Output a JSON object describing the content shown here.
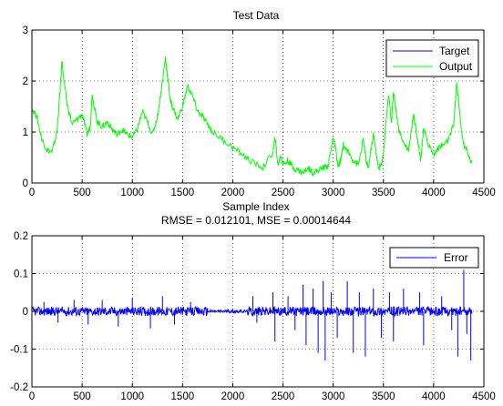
{
  "chart_data": [
    {
      "type": "line",
      "title": "Test Data",
      "xlabel": "Sample Index",
      "ylabel": "",
      "xlim": [
        0,
        4500
      ],
      "ylim": [
        0,
        3
      ],
      "xticks": [
        0,
        500,
        1000,
        1500,
        2000,
        2500,
        3000,
        3500,
        4000,
        4500
      ],
      "yticks": [
        0,
        1,
        2,
        3
      ],
      "grid": true,
      "legend_position": "top-right",
      "series": [
        {
          "name": "Target",
          "color": "#0000ff"
        },
        {
          "name": "Output",
          "color": "#00ff00",
          "x": [
            0,
            50,
            100,
            150,
            200,
            250,
            280,
            300,
            320,
            350,
            400,
            450,
            500,
            550,
            580,
            600,
            620,
            650,
            700,
            750,
            800,
            850,
            900,
            950,
            1000,
            1050,
            1100,
            1150,
            1200,
            1250,
            1300,
            1330,
            1350,
            1380,
            1400,
            1450,
            1500,
            1550,
            1600,
            1650,
            1700,
            1750,
            1800,
            1900,
            2000,
            2100,
            2200,
            2300,
            2400,
            2420,
            2450,
            2480,
            2500,
            2550,
            2600,
            2650,
            2700,
            2750,
            2800,
            2850,
            2900,
            2950,
            3000,
            3020,
            3050,
            3080,
            3100,
            3150,
            3200,
            3250,
            3300,
            3330,
            3350,
            3400,
            3430,
            3450,
            3480,
            3500,
            3550,
            3580,
            3600,
            3620,
            3650,
            3700,
            3750,
            3800,
            3850,
            3870,
            3900,
            3950,
            4000,
            4050,
            4100,
            4150,
            4200,
            4230,
            4250,
            4280,
            4300,
            4350,
            4380
          ],
          "y": [
            1.45,
            1.3,
            0.85,
            0.65,
            0.6,
            1.0,
            1.8,
            2.4,
            2.0,
            1.55,
            1.15,
            1.25,
            1.35,
            0.95,
            1.1,
            1.75,
            1.5,
            1.2,
            1.1,
            1.2,
            1.05,
            0.95,
            1.05,
            0.95,
            0.9,
            1.05,
            1.4,
            1.2,
            0.95,
            1.3,
            2.0,
            2.45,
            2.1,
            1.6,
            1.5,
            1.25,
            1.5,
            1.9,
            1.7,
            1.4,
            1.3,
            1.15,
            1.0,
            0.85,
            0.7,
            0.55,
            0.4,
            0.3,
            0.6,
            0.9,
            0.35,
            0.55,
            0.35,
            0.45,
            0.3,
            0.25,
            0.2,
            0.3,
            0.2,
            0.25,
            0.3,
            0.35,
            0.9,
            0.7,
            0.3,
            0.5,
            0.75,
            0.6,
            0.45,
            0.35,
            0.85,
            0.4,
            0.3,
            0.95,
            0.55,
            0.3,
            0.35,
            0.6,
            1.75,
            1.2,
            1.8,
            1.5,
            1.05,
            0.8,
            0.65,
            1.35,
            0.75,
            0.45,
            1.05,
            0.75,
            0.55,
            0.7,
            0.75,
            0.85,
            1.15,
            1.95,
            1.6,
            0.95,
            0.75,
            0.55,
            0.4
          ]
        }
      ]
    },
    {
      "type": "line",
      "title": "RMSE = 0.012101, MSE = 0.00014644",
      "xlabel": "",
      "ylabel": "",
      "xlim": [
        0,
        4500
      ],
      "ylim": [
        -0.2,
        0.2
      ],
      "xticks": [
        0,
        500,
        1000,
        1500,
        2000,
        2500,
        3000,
        3500,
        4000,
        4500
      ],
      "yticks": [
        -0.2,
        -0.1,
        0,
        0.1,
        0.2
      ],
      "grid": true,
      "legend_position": "top-right",
      "series": [
        {
          "name": "Error",
          "color": "#0000ff",
          "x_range": [
            0,
            4380
          ],
          "baseline": 0,
          "spikes": [
            {
              "x": 120,
              "y": 0.025
            },
            {
              "x": 260,
              "y": -0.03
            },
            {
              "x": 420,
              "y": 0.03
            },
            {
              "x": 560,
              "y": -0.035
            },
            {
              "x": 700,
              "y": 0.03
            },
            {
              "x": 860,
              "y": -0.04
            },
            {
              "x": 1000,
              "y": 0.035
            },
            {
              "x": 1180,
              "y": -0.045
            },
            {
              "x": 1300,
              "y": 0.04
            },
            {
              "x": 1420,
              "y": -0.035
            },
            {
              "x": 1580,
              "y": 0.025
            },
            {
              "x": 2200,
              "y": 0.04
            },
            {
              "x": 2240,
              "y": -0.03
            },
            {
              "x": 2400,
              "y": 0.05
            },
            {
              "x": 2420,
              "y": -0.08
            },
            {
              "x": 2550,
              "y": 0.04
            },
            {
              "x": 2620,
              "y": -0.05
            },
            {
              "x": 2700,
              "y": 0.07
            },
            {
              "x": 2730,
              "y": -0.09
            },
            {
              "x": 2800,
              "y": 0.06
            },
            {
              "x": 2850,
              "y": -0.11
            },
            {
              "x": 2900,
              "y": 0.08
            },
            {
              "x": 2920,
              "y": -0.13
            },
            {
              "x": 2980,
              "y": 0.05
            },
            {
              "x": 3040,
              "y": -0.07
            },
            {
              "x": 3140,
              "y": 0.08
            },
            {
              "x": 3200,
              "y": -0.11
            },
            {
              "x": 3260,
              "y": 0.05
            },
            {
              "x": 3320,
              "y": -0.12
            },
            {
              "x": 3400,
              "y": 0.06
            },
            {
              "x": 3480,
              "y": -0.07
            },
            {
              "x": 3560,
              "y": 0.05
            },
            {
              "x": 3600,
              "y": -0.08
            },
            {
              "x": 3700,
              "y": 0.06
            },
            {
              "x": 3860,
              "y": 0.05
            },
            {
              "x": 3900,
              "y": -0.09
            },
            {
              "x": 4080,
              "y": 0.04
            },
            {
              "x": 4180,
              "y": -0.05
            },
            {
              "x": 4240,
              "y": -0.12
            },
            {
              "x": 4300,
              "y": 0.11
            },
            {
              "x": 4330,
              "y": -0.06
            },
            {
              "x": 4370,
              "y": -0.13
            }
          ]
        }
      ]
    }
  ]
}
